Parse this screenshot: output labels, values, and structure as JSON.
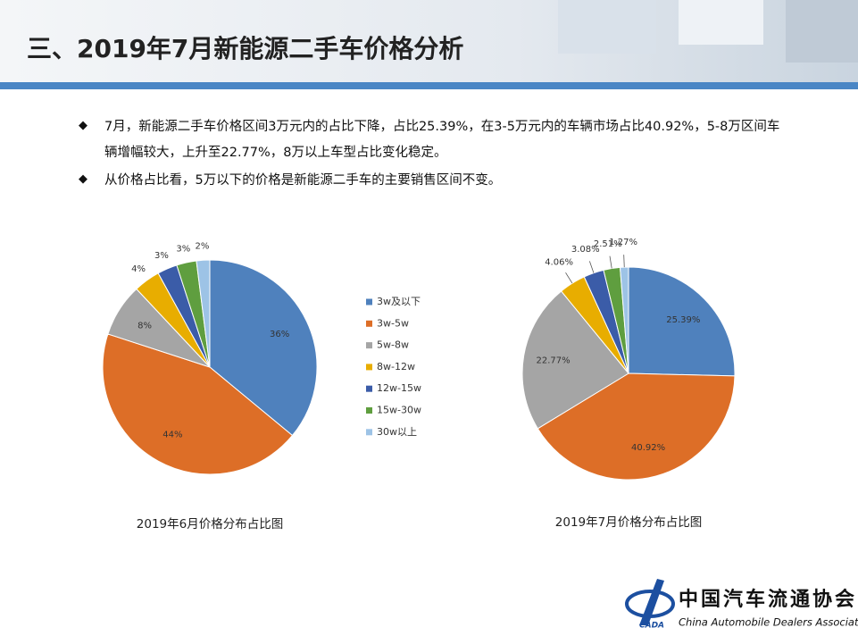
{
  "header": {
    "title": "三、2019年7月新能源二手车价格分析"
  },
  "bullets": [
    "7月，新能源二手车价格区间3万元内的占比下降，占比25.39%，在3-5万元内的车辆市场占比40.92%，5-8万区间车辆增幅较大，上升至22.77%，8万以上车型占比变化稳定。",
    "从价格占比看，5万以下的价格是新能源二手车的主要销售区间不变。"
  ],
  "chart_data": [
    {
      "type": "pie",
      "title": "2019年6月价格分布占比图",
      "legend": true,
      "categories": [
        "3w及以下",
        "3w-5w",
        "5w-8w",
        "8w-12w",
        "12w-15w",
        "15w-30w",
        "30w以上"
      ],
      "values": [
        36,
        44,
        8,
        4,
        3,
        3,
        2
      ],
      "value_labels": [
        "36%",
        "44%",
        "8%",
        "4%",
        "3%",
        "3%",
        "2%"
      ],
      "colors": [
        "#4f81bd",
        "#dd6e27",
        "#a5a5a5",
        "#e8ad00",
        "#3b5ca8",
        "#5f9e3f",
        "#9dc3e6"
      ]
    },
    {
      "type": "pie",
      "title": "2019年7月价格分布占比图",
      "legend": false,
      "categories": [
        "3w及以下",
        "3w-5w",
        "5w-8w",
        "8w-12w",
        "12w-15w",
        "15w-30w",
        "30w以上"
      ],
      "values": [
        25.39,
        40.92,
        22.77,
        4.06,
        3.08,
        2.51,
        1.27
      ],
      "value_labels": [
        "25.39%",
        "40.92%",
        "22.77%",
        "4.06%",
        "3.08%",
        "2.51%",
        "1.27%"
      ],
      "colors": [
        "#4f81bd",
        "#dd6e27",
        "#a5a5a5",
        "#e8ad00",
        "#3b5ca8",
        "#5f9e3f",
        "#9dc3e6"
      ]
    }
  ],
  "logo": {
    "name": "中国汽车流通协会",
    "english": "China Automobile Dealers Association",
    "abbr": "CADA"
  }
}
